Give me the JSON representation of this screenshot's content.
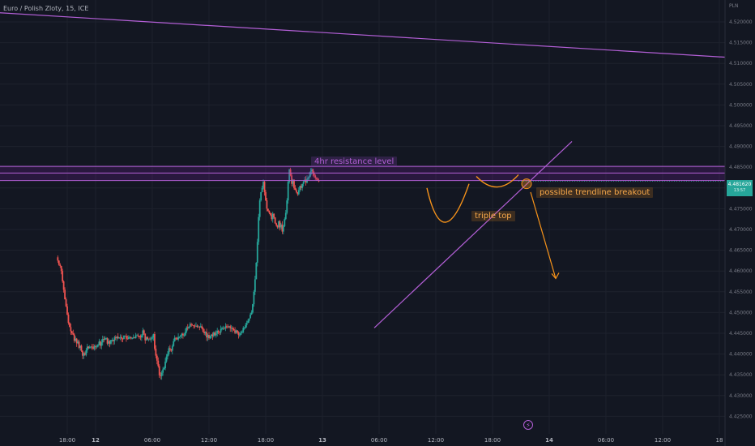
{
  "header": {
    "symbol": "Euro / Polish Zloty, 15, ICE"
  },
  "axis": {
    "currency": "PLN",
    "price_ticks": [
      "4.520000",
      "4.515000",
      "4.510000",
      "4.505000",
      "4.500000",
      "4.495000",
      "4.490000",
      "4.485000",
      "4.480000",
      "4.475000",
      "4.470000",
      "4.465000",
      "4.460000",
      "4.455000",
      "4.450000",
      "4.445000",
      "4.440000",
      "4.435000",
      "4.430000",
      "4.425000"
    ],
    "time_ticks": [
      "18:00",
      "12",
      "06:00",
      "12:00",
      "18:00",
      "13",
      "06:00",
      "12:00",
      "18:00",
      "14",
      "06:00",
      "12:00",
      "18"
    ]
  },
  "current_price": {
    "price": "4.481620",
    "countdown": "13:57",
    "color": "#26a69a"
  },
  "annotations": {
    "resistance_label": "4hr resistance level",
    "pattern_label": "triple top",
    "breakout_label": "possible trendline breakout"
  },
  "icons": {
    "flash": "lightning-icon"
  },
  "colors": {
    "up": "#26a69a",
    "down": "#ef5350",
    "drawing_purple": "#b35fd6",
    "drawing_orange": "#f7931a",
    "background": "#131722"
  },
  "chart_data": {
    "type": "candlestick",
    "interval": "15",
    "ylim": [
      4.4235,
      4.5245
    ],
    "description_x": "time in hours from 12 (day 12) 00:00",
    "start_hour": -8,
    "bar_hours": 0.25,
    "closes": [
      4.4625,
      4.4615,
      4.4612,
      4.46,
      4.4575,
      4.4555,
      4.4532,
      4.4515,
      4.4495,
      4.4475,
      4.4465,
      4.4455,
      4.445,
      4.4447,
      4.4432,
      4.4437,
      4.4426,
      4.443,
      4.4415,
      4.442,
      4.4408,
      4.4396,
      4.4402,
      4.4398,
      4.4409,
      4.4418,
      4.4414,
      4.4417,
      4.4418,
      4.4416,
      4.4413,
      4.4419,
      4.4417,
      4.4418,
      4.4422,
      4.443,
      4.442,
      4.4428,
      4.4436,
      4.4434,
      4.4438,
      4.4438,
      4.4425,
      4.4431,
      4.4425,
      4.4434,
      4.4434,
      4.4431,
      4.444,
      4.4438,
      4.4442,
      4.4438,
      4.444,
      4.4441,
      4.4437,
      4.4436,
      4.4444,
      4.4444,
      4.4437,
      4.4436,
      4.4441,
      4.4441,
      4.4438,
      4.4438,
      4.444,
      4.4438,
      4.4445,
      4.4445,
      4.4444,
      4.4443,
      4.444,
      4.4445,
      4.4457,
      4.4449,
      4.4433,
      4.4441,
      4.4436,
      4.4437,
      4.4436,
      4.4437,
      4.444,
      4.4448,
      4.4413,
      4.4396,
      4.4384,
      4.4371,
      4.4349,
      4.4347,
      4.4355,
      4.4363,
      4.4366,
      4.4382,
      4.4394,
      4.44,
      4.4414,
      4.4412,
      4.4408,
      4.4419,
      4.4431,
      4.4439,
      4.4438,
      4.4435,
      4.4441,
      4.4442,
      4.4445,
      4.4449,
      4.4445,
      4.4445,
      4.4454,
      4.4464,
      4.4462,
      4.4466,
      4.4472,
      4.447,
      4.4469,
      4.4468,
      4.4467,
      4.4468,
      4.4465,
      4.4466,
      4.4464,
      4.4467,
      4.4462,
      4.4454,
      4.445,
      4.4453,
      4.444,
      4.4446,
      4.4438,
      4.4444,
      4.4447,
      4.4443,
      4.4452,
      4.4445,
      4.4449,
      4.4456,
      4.4453,
      4.4452,
      4.446,
      4.4463,
      4.4463,
      4.4462,
      4.4467,
      4.4466,
      4.4465,
      4.4467,
      4.4462,
      4.4463,
      4.446,
      4.4457,
      4.4451,
      4.4457,
      4.4452,
      4.4446,
      4.4446,
      4.4451,
      4.4453,
      4.4463,
      4.4463,
      4.447,
      4.4475,
      4.448,
      4.4486,
      4.4495,
      4.45,
      4.452,
      4.455,
      4.458,
      4.462,
      4.467,
      4.473,
      4.477,
      4.479,
      4.48,
      4.4815,
      4.479,
      4.477,
      4.475,
      4.4745,
      4.474,
      4.4735,
      4.4725,
      4.4738,
      4.4729,
      4.4715,
      4.471,
      4.4705,
      4.472,
      4.4705,
      4.4712,
      4.4695,
      4.4708,
      4.4725,
      4.474,
      4.477,
      4.4815,
      4.4845,
      4.483,
      4.481,
      4.482,
      4.48,
      4.4795,
      4.479,
      4.4785,
      4.4795,
      4.4805,
      4.48,
      4.481,
      4.4815,
      4.482,
      4.4813,
      4.4822,
      4.4825,
      4.483,
      4.484,
      4.4845,
      4.4835,
      4.483,
      4.4825,
      4.4822,
      4.4818,
      4.4816
    ],
    "annotations_prices": {
      "resistance_top": 4.4852,
      "resistance_mid": 4.4836,
      "resistance_bottom": 4.4818
    }
  }
}
